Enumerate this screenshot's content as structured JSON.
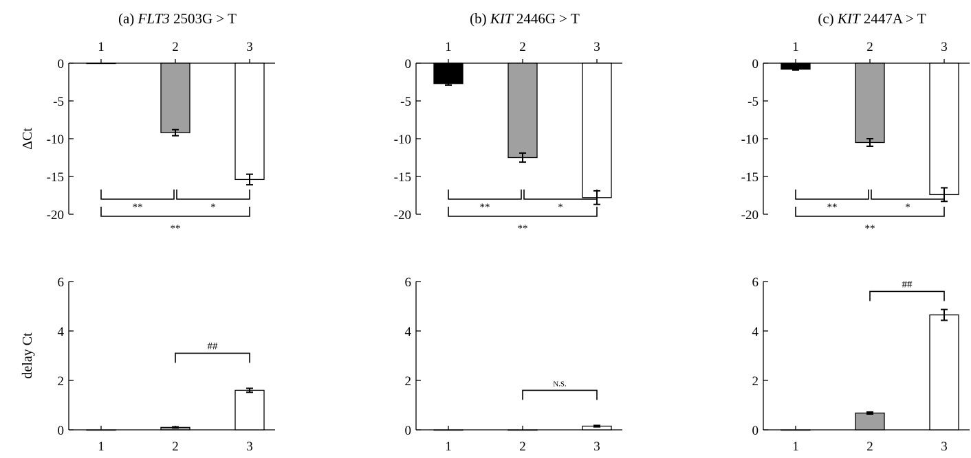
{
  "colors": {
    "group1": "#000000",
    "group2": "#a0a0a0",
    "group3": "#ffffff",
    "stroke": "#000000"
  },
  "chart_data": [
    {
      "type": "bar",
      "row": "top",
      "col": 0,
      "title_prefix": "(a) ",
      "title_gene": "FLT3",
      "title_suffix": " 2503G > T",
      "ylabel": "ΔCt",
      "categories": [
        "1",
        "2",
        "3"
      ],
      "values": [
        0,
        -9.2,
        -15.4
      ],
      "errors": [
        0,
        0.4,
        0.7
      ],
      "ylim": [
        -20,
        0
      ],
      "yticks": [
        0,
        -5,
        -10,
        -15,
        -20
      ],
      "ytick_labels": [
        "0",
        "-5",
        "-10",
        "-15",
        "-20"
      ],
      "xaxis_position": "top",
      "brackets": [
        {
          "from": 1,
          "to": 2,
          "level": 0,
          "label": "**"
        },
        {
          "from": 2,
          "to": 3,
          "level": 0,
          "label": "*"
        },
        {
          "from": 1,
          "to": 3,
          "level": 1,
          "label": "**"
        }
      ]
    },
    {
      "type": "bar",
      "row": "top",
      "col": 1,
      "title_prefix": "(b) ",
      "title_gene": "KIT",
      "title_suffix": " 2446G > T",
      "ylabel": "",
      "categories": [
        "1",
        "2",
        "3"
      ],
      "values": [
        -2.7,
        -12.5,
        -17.8
      ],
      "errors": [
        0.2,
        0.6,
        0.9
      ],
      "ylim": [
        -20,
        0
      ],
      "yticks": [
        0,
        -5,
        -10,
        -15,
        -20
      ],
      "ytick_labels": [
        "0",
        "-5",
        "-10",
        "-15",
        "-20"
      ],
      "xaxis_position": "top",
      "brackets": [
        {
          "from": 1,
          "to": 2,
          "level": 0,
          "label": "**"
        },
        {
          "from": 2,
          "to": 3,
          "level": 0,
          "label": "*"
        },
        {
          "from": 1,
          "to": 3,
          "level": 1,
          "label": "**"
        }
      ]
    },
    {
      "type": "bar",
      "row": "top",
      "col": 2,
      "title_prefix": "(c) ",
      "title_gene": "KIT",
      "title_suffix": " 2447A > T",
      "ylabel": "",
      "categories": [
        "1",
        "2",
        "3"
      ],
      "values": [
        -0.8,
        -10.5,
        -17.4
      ],
      "errors": [
        0.1,
        0.5,
        0.9
      ],
      "ylim": [
        -20,
        0
      ],
      "yticks": [
        0,
        -5,
        -10,
        -15,
        -20
      ],
      "ytick_labels": [
        "0",
        "-5",
        "-10",
        "-15",
        "-20"
      ],
      "xaxis_position": "top",
      "brackets": [
        {
          "from": 1,
          "to": 2,
          "level": 0,
          "label": "**"
        },
        {
          "from": 2,
          "to": 3,
          "level": 0,
          "label": "*"
        },
        {
          "from": 1,
          "to": 3,
          "level": 1,
          "label": "**"
        }
      ]
    },
    {
      "type": "bar",
      "row": "bottom",
      "col": 0,
      "ylabel": "delay Ct",
      "categories": [
        "1",
        "2",
        "3"
      ],
      "values": [
        0,
        0.1,
        1.6
      ],
      "errors": [
        0,
        0.02,
        0.08
      ],
      "ylim": [
        0,
        6
      ],
      "yticks": [
        0,
        2,
        4,
        6
      ],
      "ytick_labels": [
        "0",
        "2",
        "4",
        "6"
      ],
      "xaxis_position": "bottom",
      "brackets": [
        {
          "from": 2,
          "to": 3,
          "y": 3.1,
          "label": "##",
          "small": false
        }
      ]
    },
    {
      "type": "bar",
      "row": "bottom",
      "col": 1,
      "ylabel": "",
      "categories": [
        "1",
        "2",
        "3"
      ],
      "values": [
        0,
        0,
        0.15
      ],
      "errors": [
        0,
        0,
        0.03
      ],
      "ylim": [
        0,
        6
      ],
      "yticks": [
        0,
        2,
        4,
        6
      ],
      "ytick_labels": [
        "0",
        "2",
        "4",
        "6"
      ],
      "xaxis_position": "bottom",
      "brackets": [
        {
          "from": 2,
          "to": 3,
          "y": 1.6,
          "label": "N.S.",
          "small": true
        }
      ]
    },
    {
      "type": "bar",
      "row": "bottom",
      "col": 2,
      "ylabel": "",
      "categories": [
        "1",
        "2",
        "3"
      ],
      "values": [
        0,
        0.68,
        4.65
      ],
      "errors": [
        0,
        0.04,
        0.22
      ],
      "ylim": [
        0,
        6
      ],
      "yticks": [
        0,
        2,
        4,
        6
      ],
      "ytick_labels": [
        "0",
        "2",
        "4",
        "6"
      ],
      "xaxis_position": "bottom",
      "brackets": [
        {
          "from": 2,
          "to": 3,
          "y": 5.6,
          "label": "##",
          "small": false
        }
      ]
    }
  ]
}
